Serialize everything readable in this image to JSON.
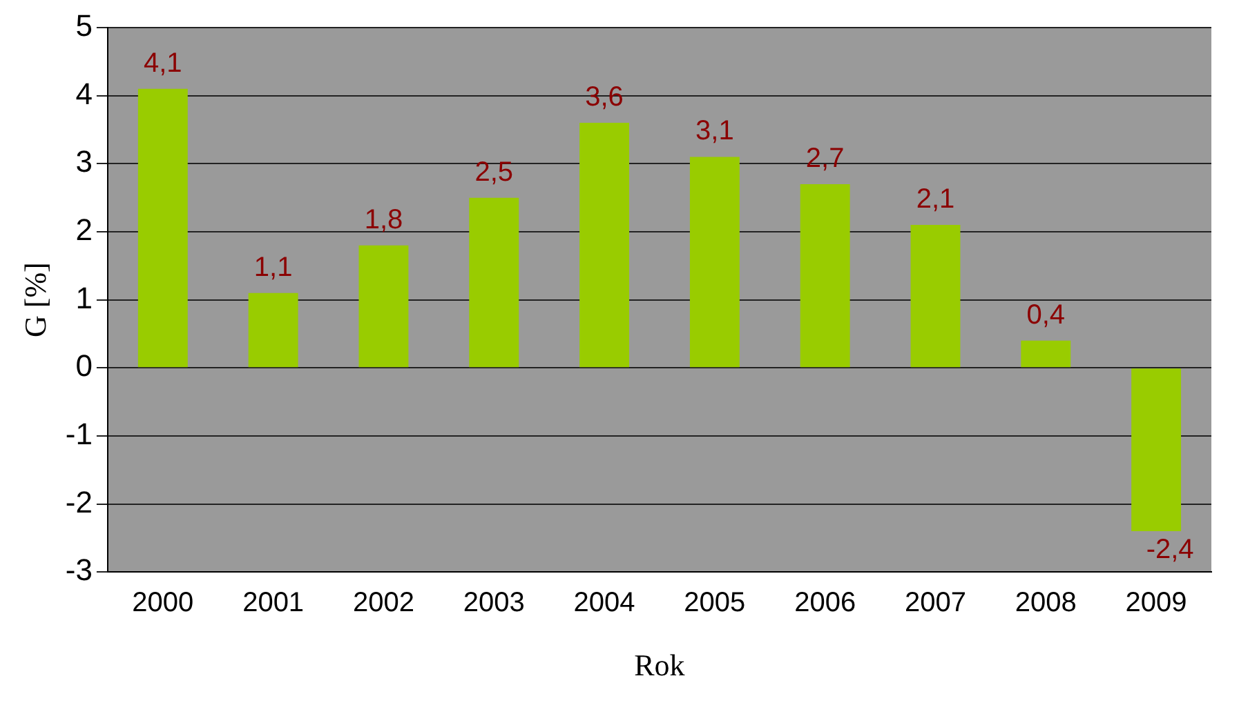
{
  "chart_data": {
    "type": "bar",
    "xlabel": "Rok",
    "ylabel": "G [%]",
    "categories": [
      "2000",
      "2001",
      "2002",
      "2003",
      "2004",
      "2005",
      "2006",
      "2007",
      "2008",
      "2009"
    ],
    "values": [
      4.1,
      1.1,
      1.8,
      2.5,
      3.6,
      3.1,
      2.7,
      2.1,
      0.4,
      -2.4
    ],
    "value_labels": [
      "4,1",
      "1,1",
      "1,8",
      "2,5",
      "3,6",
      "3,1",
      "2,7",
      "2,1",
      "0,4",
      "-2,4"
    ],
    "color": "#99cc00",
    "ylim": [
      -3,
      5
    ],
    "yticks": [
      -3,
      -2,
      -1,
      0,
      1,
      2,
      3,
      4,
      5
    ],
    "grid": "y",
    "legend": false
  }
}
